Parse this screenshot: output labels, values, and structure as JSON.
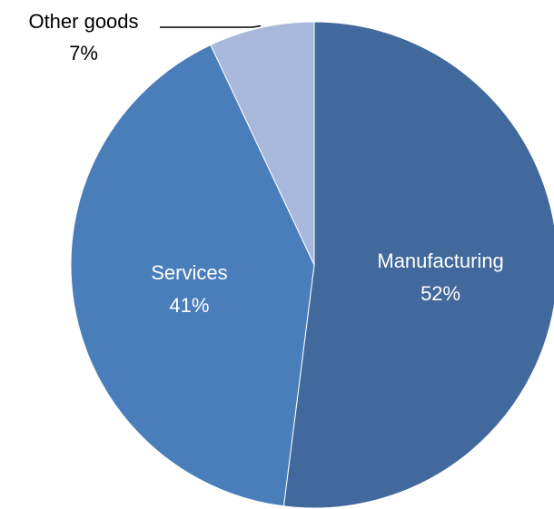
{
  "chart_data": {
    "type": "pie",
    "title": "",
    "start_angle_deg": 0,
    "direction": "clockwise",
    "legend": "none",
    "slices": [
      {
        "label": "Manufacturing",
        "value": 52,
        "value_label": "52%",
        "color": "#41699b"
      },
      {
        "label": "Services",
        "value": 41,
        "value_label": "41%",
        "color": "#4a7ebb"
      },
      {
        "label": "Other goods",
        "value": 7,
        "value_label": "7%",
        "color": "#a8b8da"
      }
    ]
  }
}
